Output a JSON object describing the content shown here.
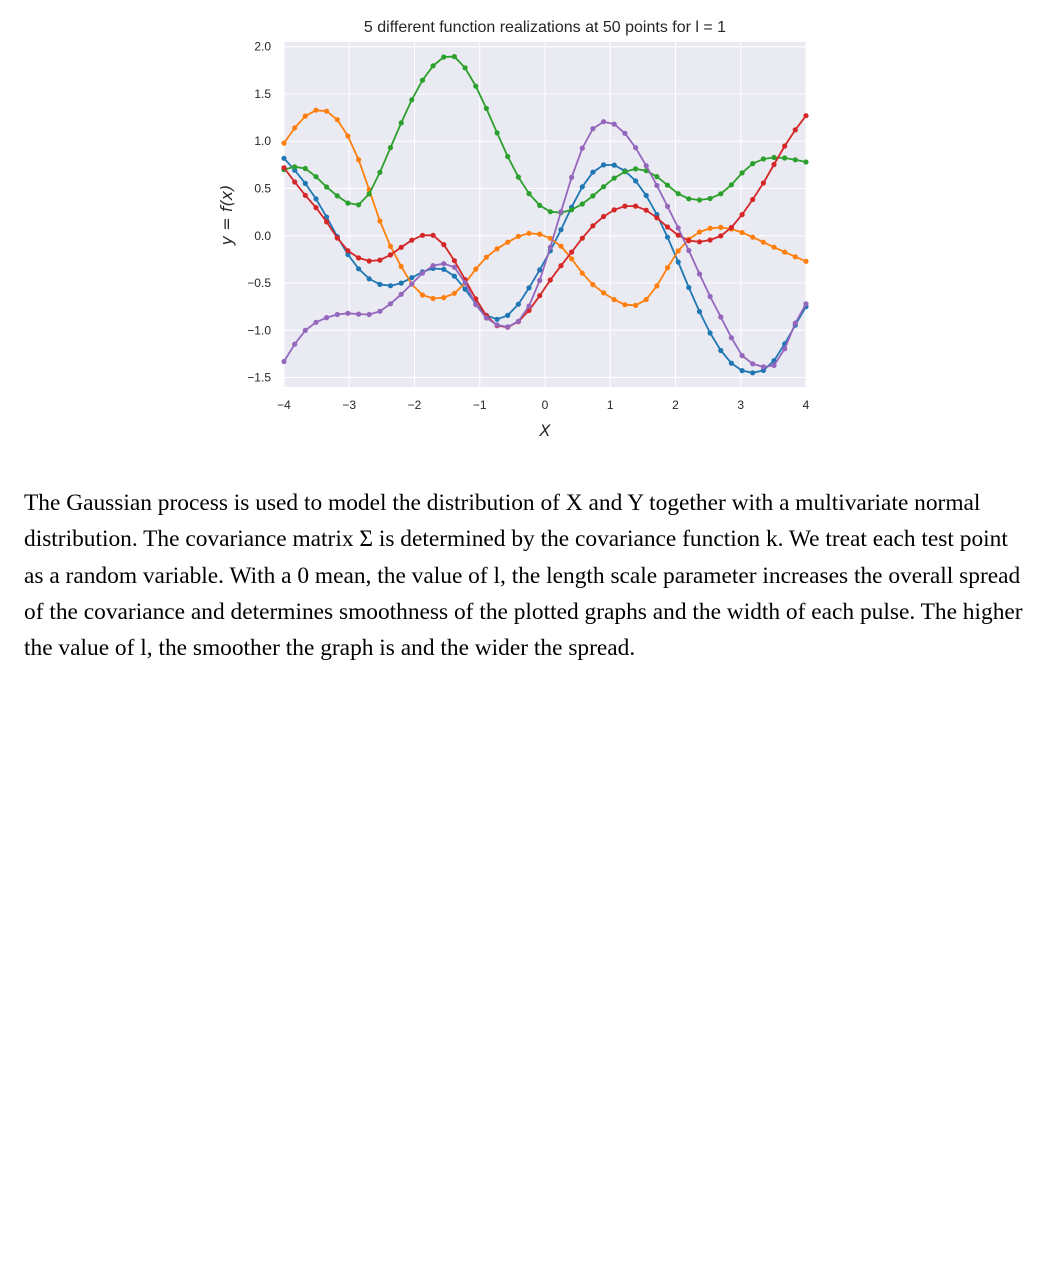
{
  "chart_data": {
    "type": "line",
    "title": "5 different function realizations at 50 points for l = 1",
    "xlabel": "X",
    "ylabel": "y = f(x)",
    "xlim": [
      -4,
      4
    ],
    "ylim": [
      -1.6,
      2.05
    ],
    "xticks": [
      -4,
      -3,
      -2,
      -1,
      0,
      1,
      2,
      3,
      4
    ],
    "xtick_labels": [
      "−4",
      "−3",
      "−2",
      "−1",
      "0",
      "1",
      "2",
      "3",
      "4"
    ],
    "yticks": [
      2.0,
      1.5,
      1.0,
      0.5,
      0.0,
      -0.5,
      -1.0,
      -1.5
    ],
    "ytick_labels": [
      "2.0",
      "1.5",
      "1.0",
      "0.5",
      "0.0",
      "−0.5",
      "−1.0",
      "−1.5"
    ],
    "grid": true,
    "background": "#eaeaf2",
    "n_points": 50,
    "series_anchors": [
      {
        "color": "#1f77b4",
        "x": [
          -4,
          -3.5,
          -3,
          -2.5,
          -2.2,
          -1.8,
          -1.4,
          -0.9,
          -0.5,
          -0.2,
          0.2,
          0.6,
          0.9,
          1.15,
          1.5,
          1.9,
          2.3,
          2.7,
          3.0,
          3.2,
          3.45,
          3.75,
          4.0
        ],
        "y": [
          0.82,
          0.38,
          -0.22,
          -0.52,
          -0.5,
          -0.36,
          -0.42,
          -0.84,
          -0.8,
          -0.5,
          0.0,
          0.55,
          0.75,
          0.72,
          0.48,
          -0.05,
          -0.7,
          -1.22,
          -1.42,
          -1.45,
          -1.37,
          -1.05,
          -0.75
        ]
      },
      {
        "color": "#ff7f0e",
        "x": [
          -4,
          -3.7,
          -3.4,
          -3.1,
          -2.8,
          -2.5,
          -2.2,
          -2.0,
          -1.6,
          -1.3,
          -1.0,
          -0.6,
          -0.3,
          0.0,
          0.3,
          0.6,
          1.0,
          1.3,
          1.6,
          2.0,
          2.4,
          2.8,
          3.2,
          3.6,
          4.0
        ],
        "y": [
          0.98,
          1.25,
          1.33,
          1.15,
          0.7,
          0.1,
          -0.33,
          -0.55,
          -0.66,
          -0.56,
          -0.3,
          -0.08,
          0.02,
          0.0,
          -0.15,
          -0.42,
          -0.65,
          -0.74,
          -0.64,
          -0.2,
          0.05,
          0.08,
          -0.02,
          -0.15,
          -0.27
        ]
      },
      {
        "color": "#2ca02c",
        "x": [
          -4,
          -3.7,
          -3.4,
          -3.1,
          -2.8,
          -2.5,
          -2.2,
          -1.9,
          -1.6,
          -1.4,
          -1.2,
          -0.9,
          -0.6,
          -0.3,
          0.0,
          0.3,
          0.6,
          0.9,
          1.2,
          1.5,
          1.8,
          2.1,
          2.4,
          2.8,
          3.1,
          3.4,
          3.7,
          4.0
        ],
        "y": [
          0.7,
          0.72,
          0.55,
          0.38,
          0.35,
          0.72,
          1.2,
          1.62,
          1.87,
          1.9,
          1.75,
          1.35,
          0.88,
          0.5,
          0.28,
          0.25,
          0.35,
          0.52,
          0.67,
          0.7,
          0.58,
          0.42,
          0.38,
          0.5,
          0.72,
          0.82,
          0.82,
          0.78
        ]
      },
      {
        "color": "#d62728",
        "x": [
          -4,
          -3.7,
          -3.4,
          -3.1,
          -2.8,
          -2.5,
          -2.2,
          -1.9,
          -1.7,
          -1.4,
          -1.1,
          -0.8,
          -0.5,
          -0.2,
          0.1,
          0.4,
          0.7,
          1.0,
          1.3,
          1.6,
          1.9,
          2.2,
          2.5,
          2.8,
          3.1,
          3.4,
          3.7,
          4.0
        ],
        "y": [
          0.72,
          0.45,
          0.2,
          -0.1,
          -0.25,
          -0.25,
          -0.12,
          0.0,
          0.0,
          -0.25,
          -0.62,
          -0.92,
          -0.95,
          -0.75,
          -0.45,
          -0.18,
          0.08,
          0.25,
          0.32,
          0.25,
          0.08,
          -0.05,
          -0.05,
          0.05,
          0.3,
          0.62,
          0.98,
          1.27
        ]
      },
      {
        "color": "#9467bd",
        "x": [
          -4,
          -3.7,
          -3.4,
          -3.0,
          -2.6,
          -2.3,
          -2.0,
          -1.8,
          -1.5,
          -1.3,
          -1.1,
          -0.8,
          -0.5,
          -0.2,
          0.1,
          0.4,
          0.7,
          1.0,
          1.3,
          1.6,
          1.9,
          2.2,
          2.5,
          2.8,
          3.0,
          3.3,
          3.6,
          3.8,
          4.0
        ],
        "y": [
          -1.33,
          -1.02,
          -0.88,
          -0.82,
          -0.82,
          -0.68,
          -0.48,
          -0.35,
          -0.3,
          -0.4,
          -0.68,
          -0.92,
          -0.95,
          -0.68,
          -0.08,
          0.6,
          1.1,
          1.2,
          1.02,
          0.68,
          0.28,
          -0.15,
          -0.6,
          -1.0,
          -1.25,
          -1.38,
          -1.3,
          -0.98,
          -0.72
        ]
      }
    ]
  },
  "caption": "The Gaussian process is used to model the distribution of X and Y together with a multivariate normal distribution. The covariance matrix Σ is determined by the covariance function k. We treat each test point as a random variable. With a 0 mean, the value of l, the length scale parameter increases the overall spread of the covariance and determines smoothness of the plotted graphs and the width of each pulse. The higher the value of l, the smoother the graph is and the wider the spread."
}
